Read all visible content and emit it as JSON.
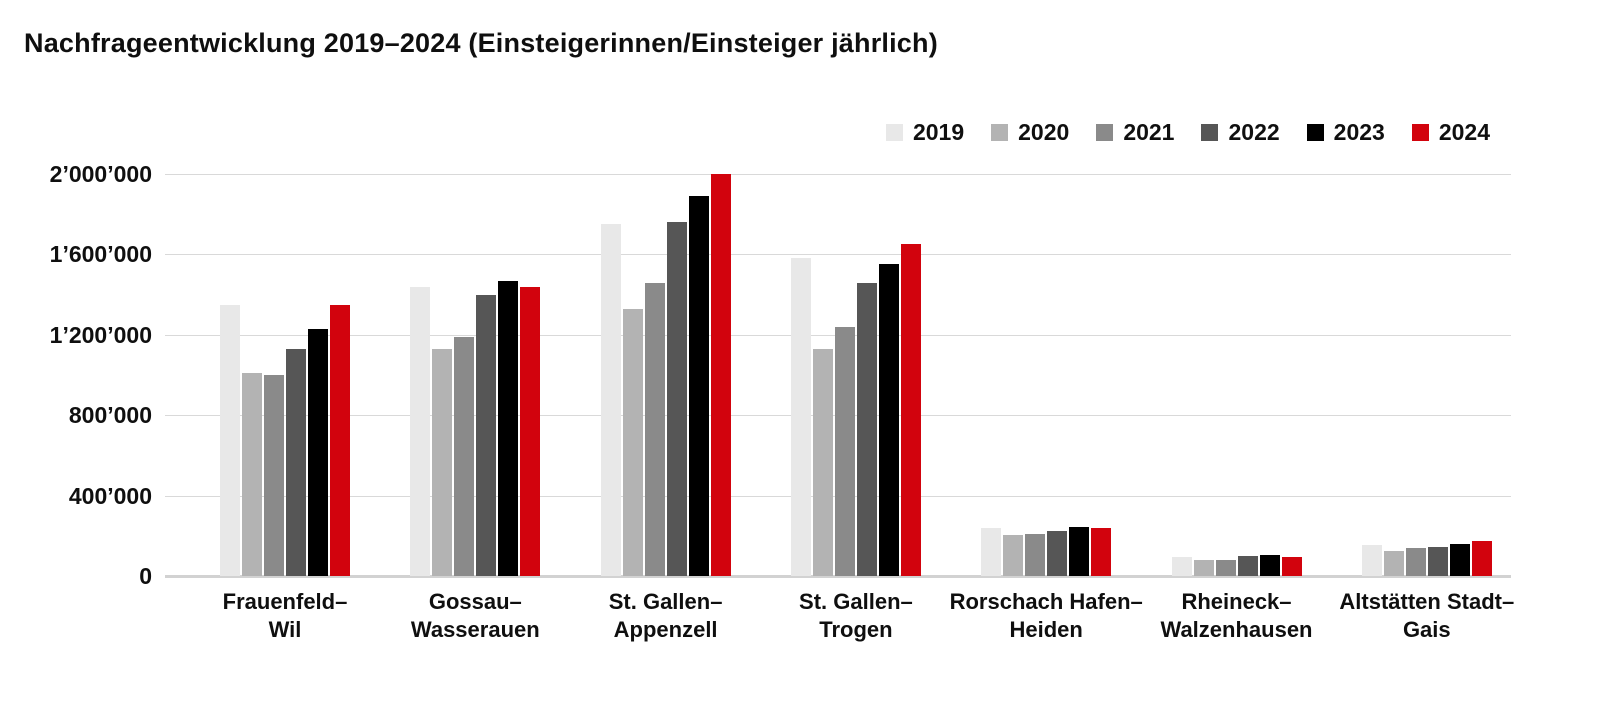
{
  "title": "Nachfrageentwicklung 2019–2024 (Einsteigerinnen/Einsteiger jährlich)",
  "chart_data": {
    "type": "bar",
    "title": "Nachfrageentwicklung 2019–2024 (Einsteigerinnen/Einsteiger jährlich)",
    "xlabel": "",
    "ylabel": "",
    "ylim": [
      0,
      2000000
    ],
    "grid": true,
    "legend_position": "top-right",
    "y_ticks": [
      {
        "value": 2000000,
        "label": "2’000’000"
      },
      {
        "value": 1600000,
        "label": "1’600’000"
      },
      {
        "value": 1200000,
        "label": "1’200’000"
      },
      {
        "value": 800000,
        "label": "800’000"
      },
      {
        "value": 400000,
        "label": "400’000"
      },
      {
        "value": 0,
        "label": "0"
      }
    ],
    "categories": [
      [
        "Frauenfeld–",
        "Wil"
      ],
      [
        "Gossau–",
        "Wasserauen"
      ],
      [
        "St. Gallen–",
        "Appenzell"
      ],
      [
        "St. Gallen–",
        "Trogen"
      ],
      [
        "Rorschach Hafen–",
        "Heiden"
      ],
      [
        "Rheineck–",
        "Walzenhausen"
      ],
      [
        "Altstätten Stadt–",
        "Gais"
      ]
    ],
    "series": [
      {
        "name": "2019",
        "color": "#e8e8e8",
        "values": [
          1350000,
          1440000,
          1750000,
          1580000,
          240000,
          95000,
          155000
        ]
      },
      {
        "name": "2020",
        "color": "#b3b3b3",
        "values": [
          1010000,
          1130000,
          1330000,
          1130000,
          205000,
          78000,
          125000
        ]
      },
      {
        "name": "2021",
        "color": "#8a8a8a",
        "values": [
          1000000,
          1190000,
          1460000,
          1240000,
          210000,
          82000,
          140000
        ]
      },
      {
        "name": "2022",
        "color": "#565656",
        "values": [
          1130000,
          1400000,
          1760000,
          1460000,
          225000,
          98000,
          145000
        ]
      },
      {
        "name": "2023",
        "color": "#000000",
        "values": [
          1230000,
          1470000,
          1890000,
          1550000,
          245000,
          104000,
          160000
        ]
      },
      {
        "name": "2024",
        "color": "#d2030d",
        "values": [
          1350000,
          1440000,
          2000000,
          1650000,
          240000,
          96000,
          175000
        ]
      }
    ]
  },
  "colors": {
    "accent_red": "#d2030d",
    "gridline": "#d9d9d9",
    "baseline": "#d2d2d2",
    "text": "#0f0f0f"
  }
}
